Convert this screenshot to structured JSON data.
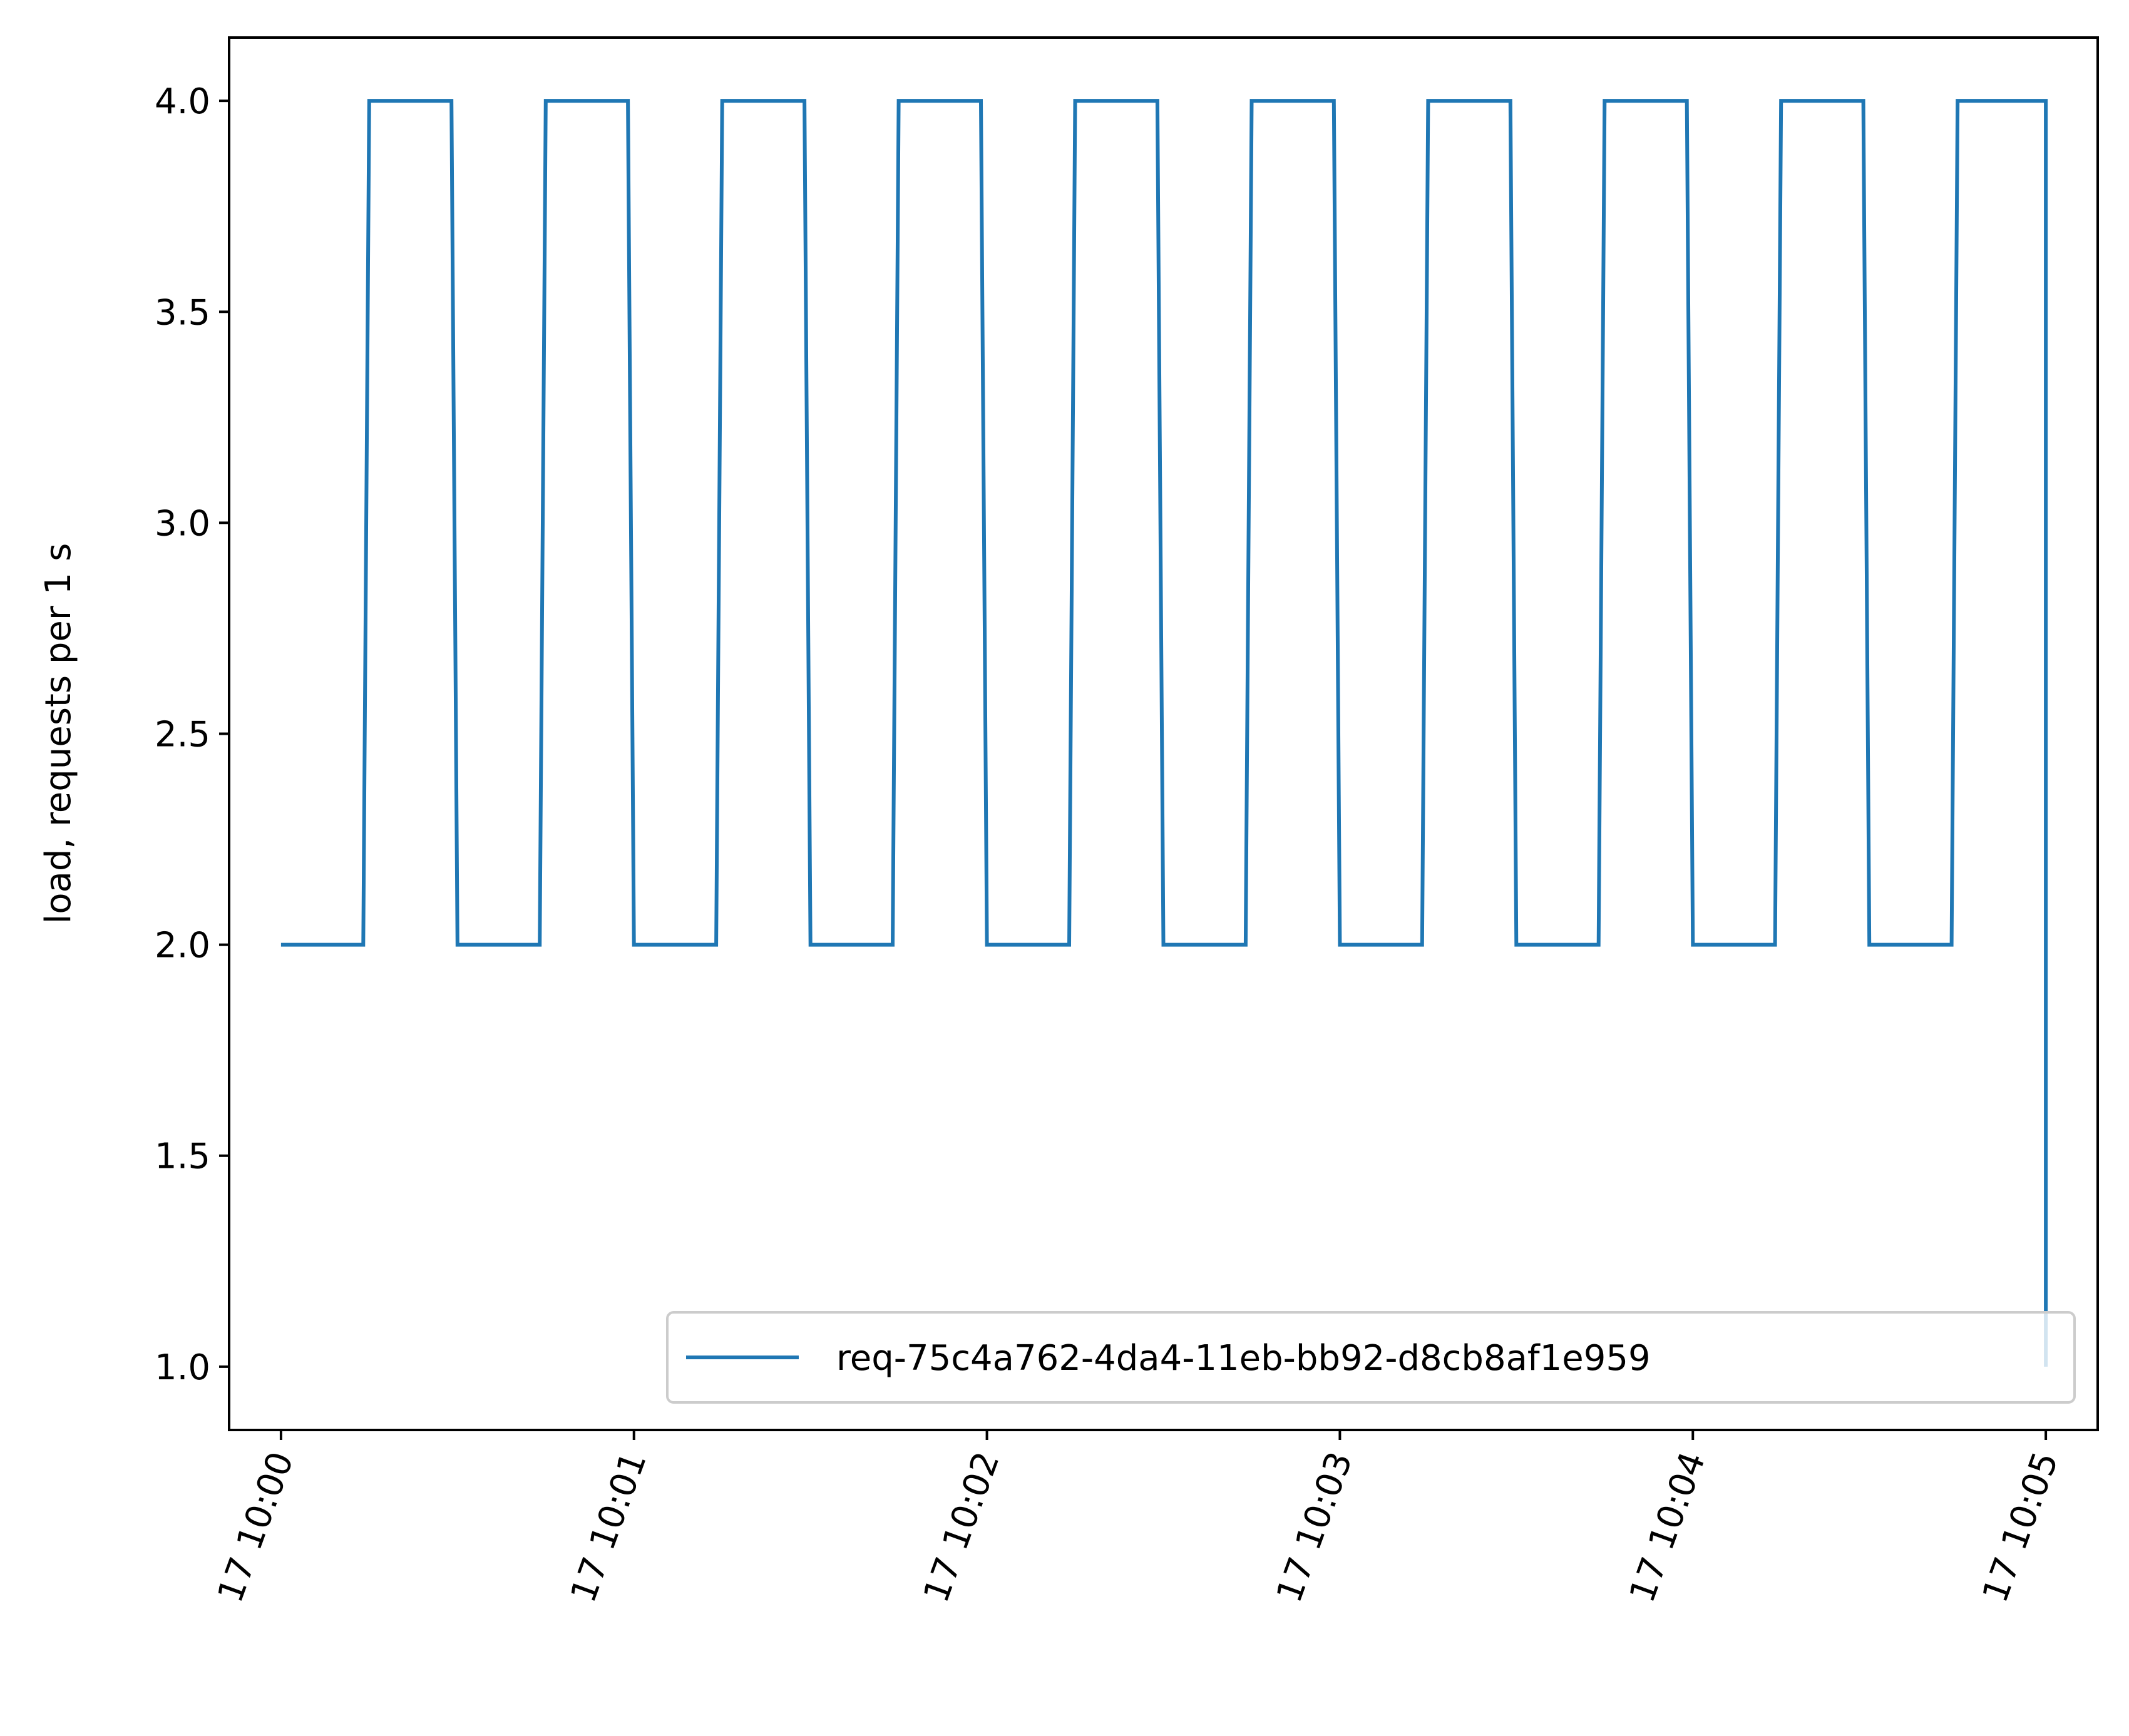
{
  "chart_data": {
    "type": "line",
    "title": "",
    "xlabel": "",
    "ylabel": "load, requests per 1 s",
    "x_ticks": [
      "17 10:00",
      "17 10:01",
      "17 10:02",
      "17 10:03",
      "17 10:04",
      "17 10:05"
    ],
    "y_ticks": [
      "1.0",
      "1.5",
      "2.0",
      "2.5",
      "3.0",
      "3.5",
      "4.0"
    ],
    "ylim": [
      0.85,
      4.15
    ],
    "xlim_minutes": [
      -0.147,
      5.147
    ],
    "grid": false,
    "legend_position": "lower-right",
    "series": [
      {
        "name": "req-75c4a762-4da4-11eb-bb92-d8cb8af1e959",
        "color": "#1f77b4",
        "x_minutes": [
          0.0,
          0.233,
          0.25,
          0.483,
          0.5,
          0.733,
          0.75,
          0.983,
          1.0,
          1.233,
          1.25,
          1.483,
          1.5,
          1.733,
          1.75,
          1.983,
          2.0,
          2.233,
          2.25,
          2.483,
          2.5,
          2.733,
          2.75,
          2.983,
          3.0,
          3.233,
          3.25,
          3.483,
          3.5,
          3.733,
          3.75,
          3.983,
          4.0,
          4.233,
          4.25,
          4.483,
          4.5,
          4.733,
          4.75,
          4.983,
          5.0,
          5.0
        ],
        "y": [
          2,
          2,
          4,
          4,
          2,
          2,
          4,
          4,
          2,
          2,
          4,
          4,
          2,
          2,
          4,
          4,
          2,
          2,
          4,
          4,
          2,
          2,
          4,
          4,
          2,
          2,
          4,
          4,
          2,
          2,
          4,
          4,
          2,
          2,
          4,
          4,
          2,
          2,
          4,
          4,
          4,
          1
        ]
      }
    ]
  }
}
